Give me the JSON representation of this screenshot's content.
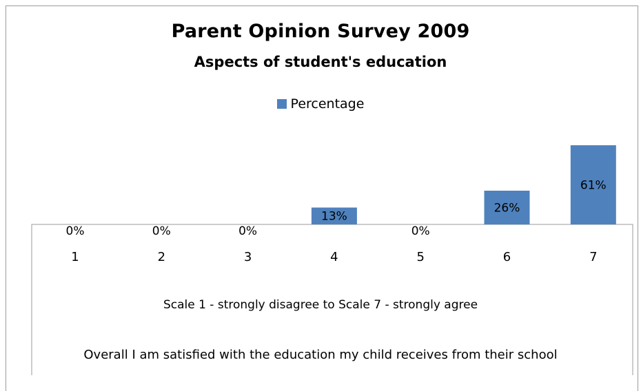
{
  "chart_data": {
    "type": "bar",
    "title": "Parent Opinion Survey 2009",
    "subtitle": "Aspects of student's education",
    "categories": [
      "1",
      "2",
      "3",
      "4",
      "5",
      "6",
      "7"
    ],
    "series": [
      {
        "name": "Percentage",
        "values": [
          0,
          0,
          0,
          13,
          0,
          26,
          61
        ],
        "labels": [
          "0%",
          "0%",
          "0%",
          "13%",
          "0%",
          "26%",
          "61%"
        ],
        "color": "#4f81bd"
      }
    ],
    "xlabel": "Scale 1 - strongly disagree to Scale 7 - strongly agree",
    "question": "Overall I am satisfied with the education my child receives from their school",
    "ylim": [
      0,
      61
    ],
    "legend_position": "top-center",
    "grid": false
  }
}
